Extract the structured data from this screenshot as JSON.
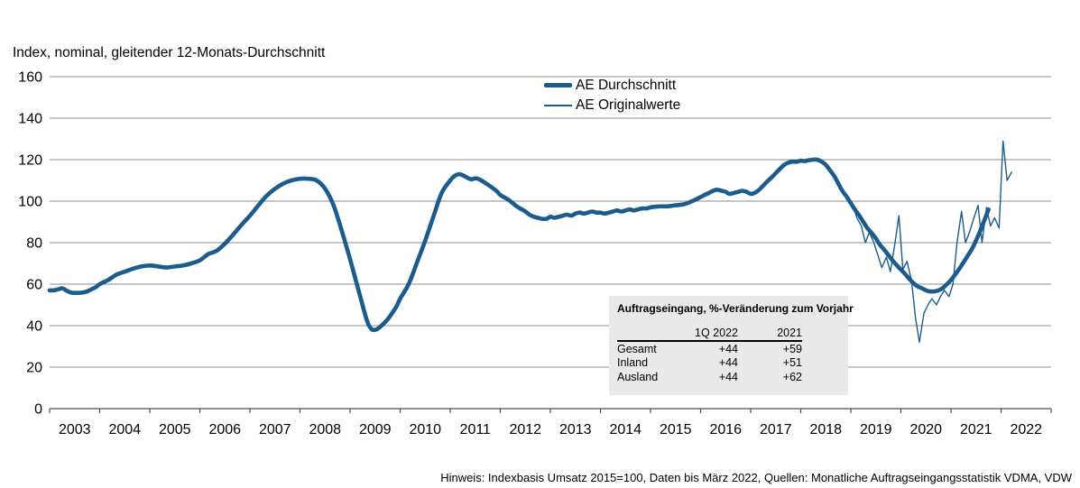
{
  "chart_data": {
    "type": "line",
    "title": "Index, nominal, gleitender 12-Monats-Durchschnitt",
    "grid": true,
    "legend_position": "top-center",
    "x_axis": {
      "range": [
        2003,
        2023
      ],
      "years": [
        2003,
        2004,
        2005,
        2006,
        2007,
        2008,
        2009,
        2010,
        2011,
        2012,
        2013,
        2014,
        2015,
        2016,
        2017,
        2018,
        2019,
        2020,
        2021,
        2022
      ]
    },
    "y_axis": {
      "range": [
        0,
        160
      ],
      "ticks": [
        0,
        20,
        40,
        60,
        80,
        100,
        120,
        140,
        160
      ]
    },
    "series": [
      {
        "name": "AE Durchschnitt",
        "style": "thick",
        "points": [
          [
            2003.0,
            57
          ],
          [
            2003.08,
            57
          ],
          [
            2003.17,
            57.5
          ],
          [
            2003.25,
            58
          ],
          [
            2003.33,
            57
          ],
          [
            2003.42,
            56
          ],
          [
            2003.5,
            55.8
          ],
          [
            2003.58,
            55.8
          ],
          [
            2003.67,
            56
          ],
          [
            2003.75,
            56.5
          ],
          [
            2003.83,
            57.5
          ],
          [
            2003.92,
            58.5
          ],
          [
            2004.0,
            60
          ],
          [
            2004.17,
            62
          ],
          [
            2004.33,
            64.5
          ],
          [
            2004.5,
            66
          ],
          [
            2004.67,
            67.5
          ],
          [
            2004.83,
            68.5
          ],
          [
            2005.0,
            69
          ],
          [
            2005.17,
            68.5
          ],
          [
            2005.33,
            68
          ],
          [
            2005.5,
            68.5
          ],
          [
            2005.67,
            69
          ],
          [
            2005.83,
            70
          ],
          [
            2006.0,
            71.5
          ],
          [
            2006.17,
            74.5
          ],
          [
            2006.33,
            76
          ],
          [
            2006.5,
            79.5
          ],
          [
            2006.67,
            84
          ],
          [
            2006.83,
            88.5
          ],
          [
            2007.0,
            93
          ],
          [
            2007.17,
            98
          ],
          [
            2007.33,
            102.5
          ],
          [
            2007.5,
            106
          ],
          [
            2007.67,
            108.5
          ],
          [
            2007.83,
            110
          ],
          [
            2008.0,
            110.8
          ],
          [
            2008.17,
            110.8
          ],
          [
            2008.33,
            110
          ],
          [
            2008.5,
            106
          ],
          [
            2008.67,
            98
          ],
          [
            2008.83,
            86
          ],
          [
            2009.0,
            72
          ],
          [
            2009.17,
            57
          ],
          [
            2009.33,
            43
          ],
          [
            2009.42,
            38.5
          ],
          [
            2009.5,
            38
          ],
          [
            2009.58,
            39
          ],
          [
            2009.75,
            43
          ],
          [
            2009.92,
            49
          ],
          [
            2010.0,
            53
          ],
          [
            2010.17,
            60
          ],
          [
            2010.33,
            70
          ],
          [
            2010.5,
            81
          ],
          [
            2010.67,
            93
          ],
          [
            2010.83,
            104
          ],
          [
            2011.0,
            110
          ],
          [
            2011.08,
            112
          ],
          [
            2011.17,
            113
          ],
          [
            2011.25,
            112.5
          ],
          [
            2011.33,
            111.5
          ],
          [
            2011.42,
            110.5
          ],
          [
            2011.5,
            111
          ],
          [
            2011.58,
            110.5
          ],
          [
            2011.75,
            108
          ],
          [
            2011.92,
            105
          ],
          [
            2012.0,
            103
          ],
          [
            2012.17,
            100.5
          ],
          [
            2012.33,
            97.5
          ],
          [
            2012.5,
            95
          ],
          [
            2012.58,
            93.5
          ],
          [
            2012.67,
            92.5
          ],
          [
            2012.75,
            92
          ],
          [
            2012.83,
            91.5
          ],
          [
            2012.92,
            91.5
          ],
          [
            2013.0,
            92.5
          ],
          [
            2013.08,
            92
          ],
          [
            2013.17,
            92.5
          ],
          [
            2013.25,
            93
          ],
          [
            2013.33,
            93.5
          ],
          [
            2013.42,
            93
          ],
          [
            2013.5,
            94
          ],
          [
            2013.58,
            94.5
          ],
          [
            2013.67,
            94
          ],
          [
            2013.75,
            94.5
          ],
          [
            2013.83,
            95
          ],
          [
            2013.92,
            94.5
          ],
          [
            2014.0,
            94.5
          ],
          [
            2014.08,
            94
          ],
          [
            2014.17,
            94.5
          ],
          [
            2014.25,
            95
          ],
          [
            2014.33,
            95.5
          ],
          [
            2014.42,
            95
          ],
          [
            2014.5,
            95.5
          ],
          [
            2014.58,
            96
          ],
          [
            2014.67,
            95.5
          ],
          [
            2014.75,
            96
          ],
          [
            2014.83,
            96.5
          ],
          [
            2014.92,
            96.5
          ],
          [
            2015.0,
            97
          ],
          [
            2015.17,
            97.5
          ],
          [
            2015.33,
            97.5
          ],
          [
            2015.5,
            98
          ],
          [
            2015.67,
            98.5
          ],
          [
            2015.83,
            100
          ],
          [
            2016.0,
            102
          ],
          [
            2016.08,
            103
          ],
          [
            2016.17,
            104
          ],
          [
            2016.25,
            105
          ],
          [
            2016.33,
            105.5
          ],
          [
            2016.42,
            105
          ],
          [
            2016.5,
            104.5
          ],
          [
            2016.58,
            103.5
          ],
          [
            2016.67,
            104
          ],
          [
            2016.75,
            104.5
          ],
          [
            2016.83,
            105
          ],
          [
            2016.92,
            104.5
          ],
          [
            2017.0,
            103.5
          ],
          [
            2017.08,
            104
          ],
          [
            2017.17,
            105.5
          ],
          [
            2017.25,
            107.5
          ],
          [
            2017.33,
            109.5
          ],
          [
            2017.42,
            111.5
          ],
          [
            2017.5,
            113.5
          ],
          [
            2017.58,
            115.5
          ],
          [
            2017.67,
            117.5
          ],
          [
            2017.75,
            118.5
          ],
          [
            2017.83,
            119
          ],
          [
            2017.92,
            119
          ],
          [
            2018.0,
            119.5
          ],
          [
            2018.08,
            119.3
          ],
          [
            2018.17,
            119.8
          ],
          [
            2018.25,
            120
          ],
          [
            2018.33,
            120
          ],
          [
            2018.42,
            119
          ],
          [
            2018.5,
            117.5
          ],
          [
            2018.58,
            115
          ],
          [
            2018.67,
            112
          ],
          [
            2018.75,
            108.5
          ],
          [
            2018.83,
            105
          ],
          [
            2018.92,
            102
          ],
          [
            2019.0,
            99
          ],
          [
            2019.08,
            96
          ],
          [
            2019.17,
            93
          ],
          [
            2019.25,
            90
          ],
          [
            2019.33,
            87
          ],
          [
            2019.42,
            84.5
          ],
          [
            2019.5,
            82
          ],
          [
            2019.58,
            79
          ],
          [
            2019.67,
            76.5
          ],
          [
            2019.75,
            74
          ],
          [
            2019.83,
            71.5
          ],
          [
            2019.92,
            69
          ],
          [
            2020.0,
            67
          ],
          [
            2020.08,
            65
          ],
          [
            2020.17,
            62.5
          ],
          [
            2020.25,
            60.5
          ],
          [
            2020.33,
            59
          ],
          [
            2020.42,
            58
          ],
          [
            2020.5,
            57
          ],
          [
            2020.58,
            56.5
          ],
          [
            2020.67,
            56.5
          ],
          [
            2020.75,
            57
          ],
          [
            2020.83,
            58
          ],
          [
            2020.92,
            60
          ],
          [
            2021.0,
            62
          ],
          [
            2021.08,
            64.5
          ],
          [
            2021.17,
            67.5
          ],
          [
            2021.25,
            70.5
          ],
          [
            2021.33,
            73.5
          ],
          [
            2021.42,
            77
          ],
          [
            2021.5,
            81
          ],
          [
            2021.58,
            85.5
          ],
          [
            2021.67,
            91
          ],
          [
            2021.75,
            96
          ]
        ]
      },
      {
        "name": "AE Originalwerte",
        "style": "thin",
        "points": [
          [
            2019.04,
            98
          ],
          [
            2019.12,
            92
          ],
          [
            2019.21,
            88
          ],
          [
            2019.29,
            80
          ],
          [
            2019.37,
            85
          ],
          [
            2019.46,
            80
          ],
          [
            2019.54,
            74
          ],
          [
            2019.62,
            68
          ],
          [
            2019.71,
            73
          ],
          [
            2019.79,
            66
          ],
          [
            2019.87,
            78
          ],
          [
            2019.96,
            93
          ],
          [
            2020.04,
            67
          ],
          [
            2020.12,
            71
          ],
          [
            2020.21,
            62
          ],
          [
            2020.29,
            44
          ],
          [
            2020.37,
            32
          ],
          [
            2020.46,
            46
          ],
          [
            2020.54,
            50
          ],
          [
            2020.62,
            53
          ],
          [
            2020.71,
            50
          ],
          [
            2020.79,
            54
          ],
          [
            2020.87,
            57
          ],
          [
            2020.96,
            54
          ],
          [
            2021.04,
            60
          ],
          [
            2021.12,
            80
          ],
          [
            2021.21,
            95
          ],
          [
            2021.29,
            80
          ],
          [
            2021.37,
            85
          ],
          [
            2021.46,
            92
          ],
          [
            2021.54,
            98
          ],
          [
            2021.62,
            80
          ],
          [
            2021.71,
            97
          ],
          [
            2021.79,
            88
          ],
          [
            2021.87,
            92
          ],
          [
            2021.96,
            87
          ],
          [
            2022.04,
            129
          ],
          [
            2022.12,
            110
          ],
          [
            2022.21,
            114
          ]
        ]
      }
    ]
  },
  "inset_table": {
    "title": "Auftragseingang, %-Veränderung zum Vorjahr",
    "columns": [
      "1Q 2022",
      "2021"
    ],
    "rows": [
      {
        "label": "Gesamt",
        "q1_2022": "+44",
        "y2021": "+59"
      },
      {
        "label": "Inland",
        "q1_2022": "+44",
        "y2021": "+51"
      },
      {
        "label": "Ausland",
        "q1_2022": "+44",
        "y2021": "+62"
      }
    ]
  },
  "footer": {
    "note": "Hinweis: Indexbasis Umsatz 2015=100, Daten bis März 2022, Quellen: Monatliche Auftragseingangsstatistik VDMA, VDW"
  },
  "colors": {
    "line": "#1b5c8c",
    "grid": "#8c8c8c",
    "axis": "#4d4d4d",
    "inset_bg": "#e9e9e9",
    "text": "#000000"
  }
}
